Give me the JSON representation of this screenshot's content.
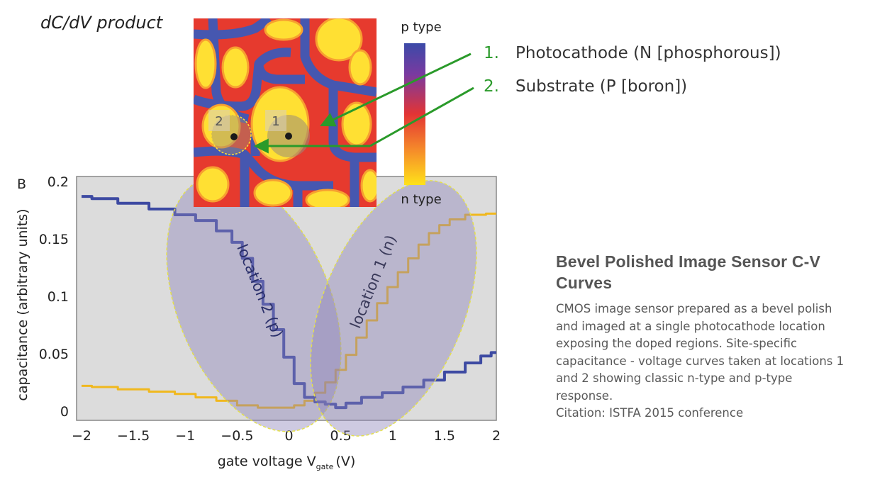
{
  "figure": {
    "header": "dC/dV product",
    "panel_label": "B",
    "colorbar": {
      "top_label": "p type",
      "bottom_label": "n type",
      "colors": [
        "#3b4aa8",
        "#7a3aa0",
        "#e33434",
        "#f58a2a",
        "#ffe21a"
      ]
    },
    "map_colors": {
      "yellow": "#ffe033",
      "red": "#e63a2e",
      "blue": "#4657b0",
      "orange": "#f7a030"
    },
    "map_markers": [
      {
        "label": "1"
      },
      {
        "label": "2"
      }
    ],
    "legend": [
      {
        "number": "1.",
        "text": "Photocathode (N [phosphorous])"
      },
      {
        "number": "2.",
        "text": "Substrate (P [boron])"
      }
    ],
    "arrow_color": "#2a9a2a"
  },
  "chart_data": {
    "type": "line",
    "xlabel": "gate voltage V",
    "xlabel_subscript": "gate",
    "xlabel_unit": "(V)",
    "ylabel": "capacitance (arbitrary units)",
    "xlim": [
      -2,
      2
    ],
    "ylim": [
      0,
      0.2
    ],
    "x_ticks": [
      "−2",
      "−1.5",
      "−1",
      "−0.5",
      "0",
      "0.5",
      "1",
      "1.5",
      "2"
    ],
    "y_ticks": [
      "0",
      "0.05",
      "0.1",
      "0.15",
      "0.2"
    ],
    "grid": false,
    "background": "#dcdcdc",
    "series": [
      {
        "name": "location 2 (p)",
        "color": "#3d4aa2",
        "points": [
          [
            -2,
            0.187
          ],
          [
            -1.8,
            0.185
          ],
          [
            -1.5,
            0.181
          ],
          [
            -1.2,
            0.176
          ],
          [
            -1,
            0.171
          ],
          [
            -0.8,
            0.166
          ],
          [
            -0.6,
            0.157
          ],
          [
            -0.5,
            0.147
          ],
          [
            -0.4,
            0.133
          ],
          [
            -0.3,
            0.113
          ],
          [
            -0.2,
            0.093
          ],
          [
            -0.1,
            0.071
          ],
          [
            0,
            0.047
          ],
          [
            0.1,
            0.024
          ],
          [
            0.2,
            0.012
          ],
          [
            0.3,
            0.008
          ],
          [
            0.4,
            0.006
          ],
          [
            0.5,
            0.003
          ],
          [
            0.6,
            0.007
          ],
          [
            0.8,
            0.012
          ],
          [
            1,
            0.016
          ],
          [
            1.2,
            0.021
          ],
          [
            1.4,
            0.027
          ],
          [
            1.6,
            0.034
          ],
          [
            1.8,
            0.042
          ],
          [
            1.9,
            0.048
          ],
          [
            2,
            0.051
          ]
        ]
      },
      {
        "name": "location 1 (n)",
        "color": "#f0b81e",
        "points": [
          [
            -2,
            0.022
          ],
          [
            -1.8,
            0.021
          ],
          [
            -1.5,
            0.019
          ],
          [
            -1.2,
            0.017
          ],
          [
            -1,
            0.015
          ],
          [
            -0.8,
            0.012
          ],
          [
            -0.6,
            0.009
          ],
          [
            -0.4,
            0.005
          ],
          [
            -0.2,
            0.003
          ],
          [
            0,
            0.003
          ],
          [
            0.1,
            0.005
          ],
          [
            0.2,
            0.009
          ],
          [
            0.3,
            0.016
          ],
          [
            0.4,
            0.025
          ],
          [
            0.5,
            0.036
          ],
          [
            0.6,
            0.049
          ],
          [
            0.7,
            0.064
          ],
          [
            0.8,
            0.079
          ],
          [
            0.9,
            0.094
          ],
          [
            1,
            0.108
          ],
          [
            1.1,
            0.121
          ],
          [
            1.2,
            0.133
          ],
          [
            1.3,
            0.145
          ],
          [
            1.4,
            0.155
          ],
          [
            1.5,
            0.162
          ],
          [
            1.6,
            0.167
          ],
          [
            1.8,
            0.171
          ],
          [
            2,
            0.172
          ]
        ]
      }
    ]
  },
  "caption": {
    "title_lines": [
      "Bevel Polished Image Sensor C-V",
      "Curves"
    ],
    "body_lines": [
      "CMOS image sensor prepared as a bevel polish",
      "and imaged at a single photocathode location",
      "exposing the doped regions. Site-specific",
      "capacitance - voltage curves taken at locations 1",
      "and 2 showing classic n-type and p-type",
      "response.",
      "Citation: ISTFA 2015 conference"
    ]
  }
}
